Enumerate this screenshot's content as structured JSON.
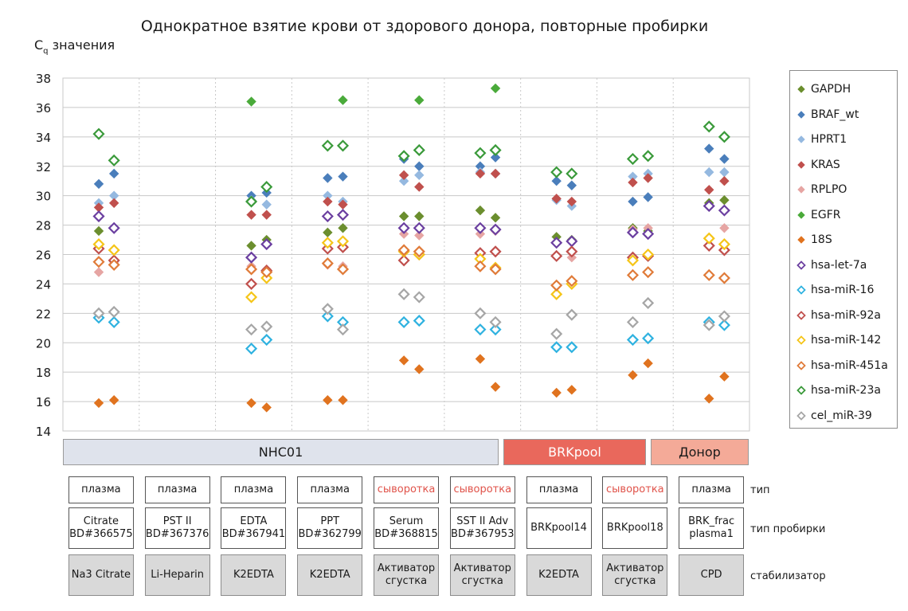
{
  "chart_data": {
    "type": "scatter",
    "title": "Однократное взятие крови от здорового донора, повторные пробирки",
    "ylabel_main": "C",
    "ylabel_sub": "q",
    "ylabel_rest": " значения",
    "ylim": [
      14,
      38
    ],
    "yticks": [
      14,
      16,
      18,
      20,
      22,
      24,
      26,
      28,
      30,
      32,
      34,
      36,
      38
    ],
    "grid": true,
    "legend_position": "right",
    "series": [
      {
        "name": "GAPDH",
        "color": "#6b8e2e",
        "filled": true,
        "points": [
          [
            0,
            27.6
          ],
          [
            1,
            27.8
          ],
          [
            4,
            26.6
          ],
          [
            5,
            27
          ],
          [
            6,
            27.5
          ],
          [
            7,
            27.8
          ],
          [
            8,
            28.6
          ],
          [
            9,
            28.6
          ],
          [
            10,
            29
          ],
          [
            11,
            28.5
          ],
          [
            12,
            27.2
          ],
          [
            13,
            27
          ],
          [
            14,
            27.8
          ],
          [
            15,
            27.6
          ],
          [
            16,
            29.5
          ],
          [
            17,
            29.7
          ]
        ]
      },
      {
        "name": "BRAF_wt",
        "color": "#4a7ebb",
        "filled": true,
        "points": [
          [
            0,
            30.8
          ],
          [
            1,
            31.5
          ],
          [
            4,
            30
          ],
          [
            5,
            30.2
          ],
          [
            6,
            31.2
          ],
          [
            7,
            31.3
          ],
          [
            8,
            32.5
          ],
          [
            9,
            32
          ],
          [
            10,
            32
          ],
          [
            11,
            32.6
          ],
          [
            12,
            31
          ],
          [
            13,
            30.7
          ],
          [
            14,
            29.6
          ],
          [
            15,
            29.9
          ],
          [
            16,
            33.2
          ],
          [
            17,
            32.5
          ]
        ]
      },
      {
        "name": "HPRT1",
        "color": "#95b9e0",
        "filled": true,
        "points": [
          [
            0,
            29.5
          ],
          [
            1,
            30
          ],
          [
            4,
            29.7
          ],
          [
            5,
            29.4
          ],
          [
            6,
            30
          ],
          [
            7,
            29.6
          ],
          [
            8,
            31
          ],
          [
            9,
            31.4
          ],
          [
            10,
            31.6
          ],
          [
            11,
            31.5
          ],
          [
            12,
            29.7
          ],
          [
            13,
            29.3
          ],
          [
            14,
            31.3
          ],
          [
            15,
            31.5
          ],
          [
            16,
            31.6
          ],
          [
            17,
            31.6
          ]
        ]
      },
      {
        "name": "KRAS",
        "color": "#c0504d",
        "filled": true,
        "points": [
          [
            0,
            29.2
          ],
          [
            1,
            29.5
          ],
          [
            4,
            28.7
          ],
          [
            5,
            28.7
          ],
          [
            6,
            29.6
          ],
          [
            7,
            29.4
          ],
          [
            8,
            31.4
          ],
          [
            9,
            30.6
          ],
          [
            10,
            31.5
          ],
          [
            11,
            31.5
          ],
          [
            12,
            29.8
          ],
          [
            13,
            29.6
          ],
          [
            14,
            30.9
          ],
          [
            15,
            31.2
          ],
          [
            16,
            30.4
          ],
          [
            17,
            31
          ]
        ]
      },
      {
        "name": "RPLPO",
        "color": "#e6a5a3",
        "filled": true,
        "points": [
          [
            0,
            24.8
          ],
          [
            1,
            25.5
          ],
          [
            4,
            25.2
          ],
          [
            5,
            25
          ],
          [
            6,
            25.3
          ],
          [
            7,
            25.2
          ],
          [
            8,
            27.4
          ],
          [
            9,
            27.3
          ],
          [
            10,
            27.4
          ],
          [
            11,
            27.6
          ],
          [
            12,
            25.9
          ],
          [
            13,
            25.8
          ],
          [
            14,
            27.7
          ],
          [
            15,
            27.8
          ],
          [
            16,
            29.3
          ],
          [
            17,
            27.8
          ]
        ]
      },
      {
        "name": "EGFR",
        "color": "#4aaa3a",
        "filled": true,
        "points": [
          [
            4,
            36.4
          ],
          [
            7,
            36.5
          ],
          [
            9,
            36.5
          ],
          [
            11,
            37.3
          ]
        ]
      },
      {
        "name": "18S",
        "color": "#e0731f",
        "filled": true,
        "points": [
          [
            0,
            15.9
          ],
          [
            1,
            16.1
          ],
          [
            4,
            15.9
          ],
          [
            5,
            15.6
          ],
          [
            6,
            16.1
          ],
          [
            7,
            16.1
          ],
          [
            8,
            18.8
          ],
          [
            9,
            18.2
          ],
          [
            10,
            18.9
          ],
          [
            11,
            17
          ],
          [
            12,
            16.6
          ],
          [
            13,
            16.8
          ],
          [
            14,
            17.8
          ],
          [
            15,
            18.6
          ],
          [
            16,
            16.2
          ],
          [
            17,
            17.7
          ]
        ]
      },
      {
        "name": "hsa-let-7a",
        "color": "#6b3fa0",
        "filled": false,
        "points": [
          [
            0,
            28.6
          ],
          [
            1,
            27.8
          ],
          [
            4,
            25.8
          ],
          [
            5,
            26.7
          ],
          [
            6,
            28.6
          ],
          [
            7,
            28.7
          ],
          [
            8,
            27.8
          ],
          [
            9,
            27.8
          ],
          [
            10,
            27.8
          ],
          [
            11,
            27.7
          ],
          [
            12,
            26.8
          ],
          [
            13,
            26.9
          ],
          [
            14,
            27.5
          ],
          [
            15,
            27.4
          ],
          [
            16,
            29.3
          ],
          [
            17,
            29
          ]
        ]
      },
      {
        "name": "hsa-miR-16",
        "color": "#2fb2e0",
        "filled": false,
        "points": [
          [
            0,
            21.7
          ],
          [
            1,
            21.4
          ],
          [
            4,
            19.6
          ],
          [
            5,
            20.2
          ],
          [
            6,
            21.8
          ],
          [
            7,
            21.4
          ],
          [
            8,
            21.4
          ],
          [
            9,
            21.5
          ],
          [
            10,
            20.9
          ],
          [
            11,
            20.9
          ],
          [
            12,
            19.7
          ],
          [
            13,
            19.7
          ],
          [
            14,
            20.2
          ],
          [
            15,
            20.3
          ],
          [
            16,
            21.4
          ],
          [
            17,
            21.2
          ]
        ]
      },
      {
        "name": "hsa-miR-92a",
        "color": "#c0504d",
        "filled": false,
        "points": [
          [
            0,
            26.4
          ],
          [
            1,
            25.6
          ],
          [
            4,
            24
          ],
          [
            5,
            24.9
          ],
          [
            6,
            26.4
          ],
          [
            7,
            26.5
          ],
          [
            8,
            25.6
          ],
          [
            9,
            26
          ],
          [
            10,
            26.1
          ],
          [
            11,
            26.2
          ],
          [
            12,
            25.9
          ],
          [
            13,
            26.2
          ],
          [
            14,
            25.8
          ],
          [
            15,
            25.9
          ],
          [
            16,
            26.6
          ],
          [
            17,
            26.3
          ]
        ]
      },
      {
        "name": "hsa-miR-142",
        "color": "#f5c518",
        "filled": false,
        "points": [
          [
            0,
            26.7
          ],
          [
            1,
            26.3
          ],
          [
            4,
            23.1
          ],
          [
            5,
            24.4
          ],
          [
            6,
            26.8
          ],
          [
            7,
            26.9
          ],
          [
            8,
            26.2
          ],
          [
            9,
            26
          ],
          [
            10,
            25.7
          ],
          [
            11,
            25.1
          ],
          [
            12,
            23.3
          ],
          [
            13,
            24
          ],
          [
            14,
            25.6
          ],
          [
            15,
            26
          ],
          [
            16,
            27.1
          ],
          [
            17,
            26.7
          ]
        ]
      },
      {
        "name": "hsa-miR-451a",
        "color": "#e07b39",
        "filled": false,
        "points": [
          [
            0,
            25.5
          ],
          [
            1,
            25.3
          ],
          [
            4,
            25
          ],
          [
            5,
            24.8
          ],
          [
            6,
            25.4
          ],
          [
            7,
            25
          ],
          [
            8,
            26.3
          ],
          [
            9,
            26.2
          ],
          [
            10,
            25.2
          ],
          [
            11,
            25
          ],
          [
            12,
            23.9
          ],
          [
            13,
            24.2
          ],
          [
            14,
            24.6
          ],
          [
            15,
            24.8
          ],
          [
            16,
            24.6
          ],
          [
            17,
            24.4
          ]
        ]
      },
      {
        "name": "hsa-miR-23a",
        "color": "#3a9a3a",
        "filled": false,
        "points": [
          [
            0,
            34.2
          ],
          [
            1,
            32.4
          ],
          [
            4,
            29.6
          ],
          [
            5,
            30.6
          ],
          [
            6,
            33.4
          ],
          [
            7,
            33.4
          ],
          [
            8,
            32.7
          ],
          [
            9,
            33.1
          ],
          [
            10,
            32.9
          ],
          [
            11,
            33.1
          ],
          [
            12,
            31.6
          ],
          [
            13,
            31.5
          ],
          [
            14,
            32.5
          ],
          [
            15,
            32.7
          ],
          [
            16,
            34.7
          ],
          [
            17,
            34
          ]
        ]
      },
      {
        "name": "cel_miR-39",
        "color": "#a6a6a6",
        "filled": false,
        "points": [
          [
            0,
            22
          ],
          [
            1,
            22.1
          ],
          [
            4,
            20.9
          ],
          [
            5,
            21.1
          ],
          [
            6,
            22.3
          ],
          [
            7,
            20.9
          ],
          [
            8,
            23.3
          ],
          [
            9,
            23.1
          ],
          [
            10,
            22
          ],
          [
            11,
            21.4
          ],
          [
            12,
            20.6
          ],
          [
            13,
            21.9
          ],
          [
            14,
            21.4
          ],
          [
            15,
            22.7
          ],
          [
            16,
            21.2
          ],
          [
            17,
            21.8
          ]
        ]
      }
    ]
  },
  "groups": [
    {
      "label": "NHC01",
      "bg": "#dfe3ec",
      "color": "#1a1a1a"
    },
    {
      "label": "BRKpool",
      "bg": "#e9685c",
      "color": "#ffffff"
    },
    {
      "label": "Донор",
      "bg": "#f4aa98",
      "color": "#1a1a1a"
    }
  ],
  "columns": [
    {
      "type": "плазма",
      "tube1": "Citrate",
      "tube2": "BD#366575",
      "stab1": "Na3 Citrate",
      "stab2": ""
    },
    {
      "type": "плазма",
      "tube1": "PST II",
      "tube2": "BD#367376",
      "stab1": "Li-Heparin",
      "stab2": ""
    },
    {
      "type": "плазма",
      "tube1": "EDTA",
      "tube2": "BD#367941",
      "stab1": "K2EDTA",
      "stab2": ""
    },
    {
      "type": "плазма",
      "tube1": "PPT",
      "tube2": "BD#362799",
      "stab1": "K2EDTA",
      "stab2": ""
    },
    {
      "type": "сыворотка",
      "tube1": "Serum",
      "tube2": "BD#368815",
      "stab1": "Активатор",
      "stab2": "сгустка"
    },
    {
      "type": "сыворотка",
      "tube1": "SST II Adv",
      "tube2": "BD#367953",
      "stab1": "Активатор",
      "stab2": "сгустка"
    },
    {
      "type": "плазма",
      "tube1": "BRKpool14",
      "tube2": "",
      "stab1": "K2EDTA",
      "stab2": ""
    },
    {
      "type": "сыворотка",
      "tube1": "BRKpool18",
      "tube2": "",
      "stab1": "Активатор",
      "stab2": "сгустка"
    },
    {
      "type": "плазма",
      "tube1": "BRK_frac",
      "tube2": "plasma1",
      "stab1": "CPD",
      "stab2": ""
    }
  ],
  "row_labels": {
    "type": "тип",
    "tube": "тип пробирки",
    "stabilizer": "стабилизатор"
  },
  "colors": {
    "serum_text": "#e0534a",
    "plasma_text": "#1a1a1a"
  }
}
